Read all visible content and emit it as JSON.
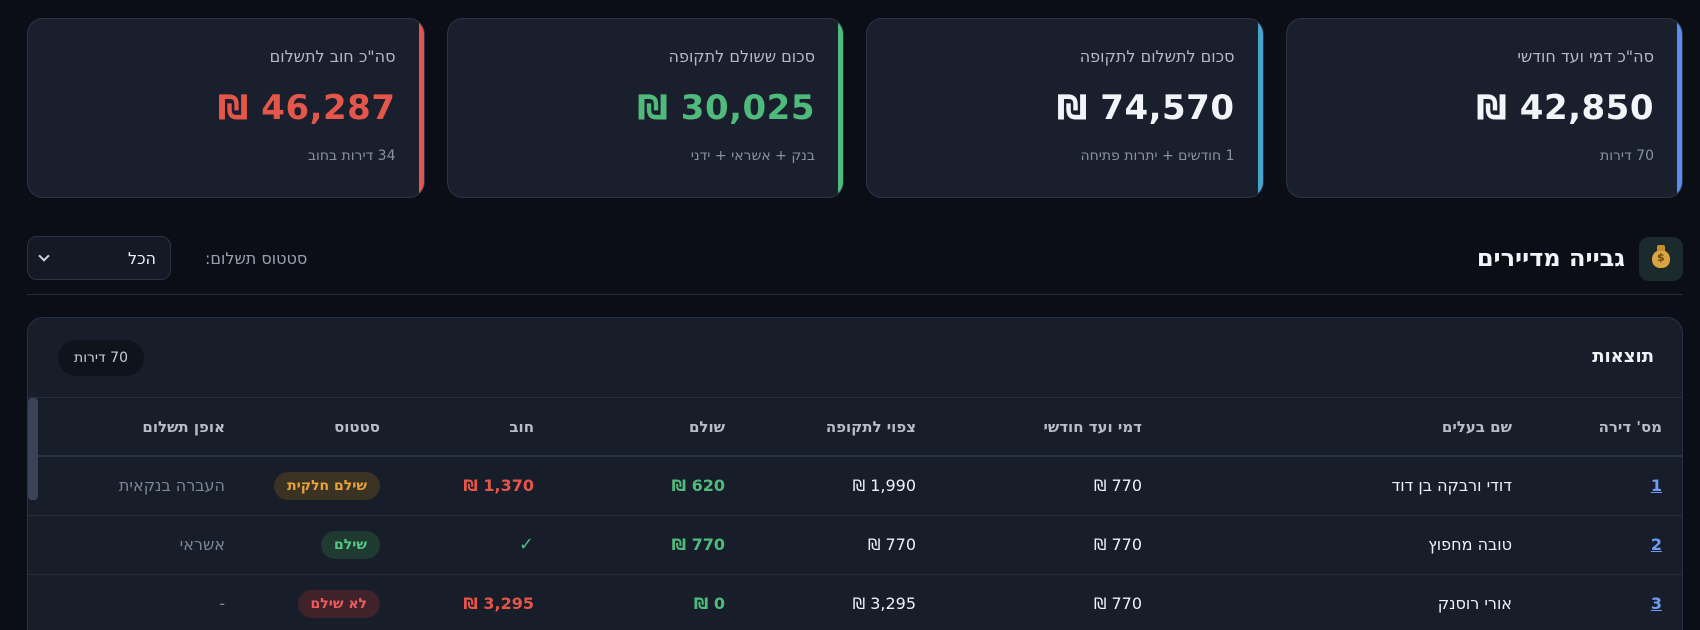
{
  "cards": [
    {
      "label": "סה\"כ דמי ועד חודשי",
      "value": "₪ 42,850",
      "sub": "70 דירות",
      "accent": "#5b8def",
      "value_color": "#f2f4f8"
    },
    {
      "label": "סכום לתשלום לתקופה",
      "value": "₪ 74,570",
      "sub": "1 חודשים + יתרות פתיחה",
      "accent": "#4aa3c9",
      "value_color": "#f2f4f8"
    },
    {
      "label": "סכום ששולם לתקופה",
      "value": "₪ 30,025",
      "sub": "בנק + אשראי + ידני",
      "accent": "#4fba7c",
      "value_color": "#4fba7c"
    },
    {
      "label": "סה\"כ חוב לתשלום",
      "value": "₪ 46,287",
      "sub": "34 דירות בחוב",
      "accent": "#e5564a",
      "value_color": "#e5564a"
    }
  ],
  "section": {
    "title": "גבייה מדיירים",
    "icon": "money-bag-icon",
    "filter_label": "סטטוס תשלום:",
    "filter_value": "הכל"
  },
  "results": {
    "title": "תוצאות",
    "count": "70 דירות",
    "columns": {
      "apt": "מס' דירה",
      "owner": "שם בעלים",
      "fee": "דמי ועד חודשי",
      "expected": "צפוי לתקופה",
      "paid": "שולם",
      "debt": "חוב",
      "status": "סטטוס",
      "method": "אופן תשלום"
    },
    "rows": [
      {
        "apt": "1",
        "owner": "דודי ורבקה בן דוד",
        "fee": "₪ 770",
        "expected": "₪ 1,990",
        "paid": "₪ 620",
        "debt": "₪ 1,370",
        "status": "שילם חלקית",
        "method": "העברה בנקאית"
      },
      {
        "apt": "2",
        "owner": "טובה מחפוץ",
        "fee": "₪ 770",
        "expected": "₪ 770",
        "paid": "₪ 770",
        "debt": "✓",
        "status": "שילם",
        "method": "אשראי"
      },
      {
        "apt": "3",
        "owner": "אורי רוסנק",
        "fee": "₪ 770",
        "expected": "₪ 3,295",
        "paid": "₪ 0",
        "debt": "₪ 3,295",
        "status": "לא שילם",
        "method": "-"
      }
    ]
  },
  "colors": {
    "background": "#0b0e16",
    "card": "#1a1f2d",
    "link": "#6f9cf0",
    "positive": "#4fba7c",
    "negative": "#e5564a",
    "partial": "#e9a23b"
  }
}
